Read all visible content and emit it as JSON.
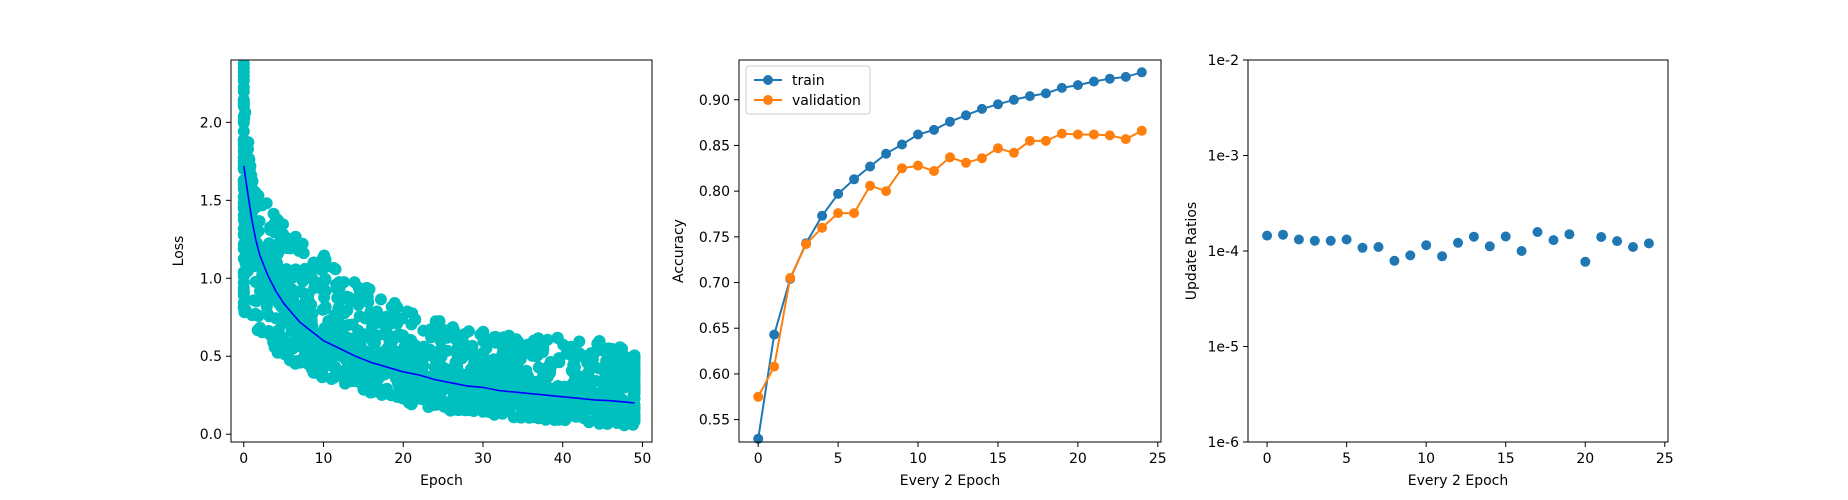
{
  "chart_data": [
    {
      "type": "scatter",
      "xlabel": "Epoch",
      "ylabel": "Loss",
      "xlim": [
        -1.6,
        51.2
      ],
      "ylim": [
        -0.05,
        2.4
      ],
      "xticks": [
        0,
        10,
        20,
        30,
        40,
        50
      ],
      "xtick_labels": [
        "0",
        "10",
        "20",
        "30",
        "40",
        "50"
      ],
      "yticks": [
        0.0,
        0.5,
        1.0,
        1.5,
        2.0
      ],
      "ytick_labels": [
        "0.0",
        "0.5",
        "1.0",
        "1.5",
        "2.0"
      ],
      "grid": false,
      "scatter_color": "#00bfbf",
      "line_color": "#0000ff",
      "scatter_envelope": {
        "x": [
          0,
          0.3,
          1,
          2,
          3,
          5,
          8,
          10,
          15,
          20,
          25,
          30,
          35,
          40,
          45,
          49
        ],
        "y_min": [
          0.8,
          0.65,
          0.65,
          0.62,
          0.55,
          0.5,
          0.4,
          0.35,
          0.28,
          0.2,
          0.15,
          0.12,
          0.1,
          0.08,
          0.06,
          0.05
        ],
        "y_max": [
          2.38,
          2.1,
          1.65,
          1.55,
          1.48,
          1.35,
          1.22,
          1.15,
          0.95,
          0.82,
          0.72,
          0.66,
          0.62,
          0.62,
          0.6,
          0.55
        ]
      },
      "line_x": [
        0,
        0.5,
        1,
        1.5,
        2,
        3,
        4,
        5,
        6,
        7,
        8,
        9,
        10,
        12,
        14,
        16,
        18,
        20,
        22,
        24,
        26,
        28,
        30,
        32,
        34,
        36,
        38,
        40,
        42,
        44,
        46,
        48,
        49
      ],
      "line_y": [
        1.72,
        1.55,
        1.38,
        1.25,
        1.15,
        1.02,
        0.92,
        0.84,
        0.78,
        0.72,
        0.68,
        0.64,
        0.6,
        0.55,
        0.5,
        0.46,
        0.43,
        0.4,
        0.38,
        0.35,
        0.33,
        0.31,
        0.3,
        0.28,
        0.27,
        0.26,
        0.25,
        0.24,
        0.23,
        0.22,
        0.215,
        0.205,
        0.2
      ]
    },
    {
      "type": "line",
      "xlabel": "Every 2 Epoch",
      "ylabel": "Accuracy",
      "xlim": [
        -1.2,
        25.2
      ],
      "ylim": [
        0.5255,
        0.9435
      ],
      "xticks": [
        0,
        5,
        10,
        15,
        20,
        25
      ],
      "xtick_labels": [
        "0",
        "5",
        "10",
        "15",
        "20",
        "25"
      ],
      "yticks": [
        0.55,
        0.6,
        0.65,
        0.7,
        0.75,
        0.8,
        0.85,
        0.9
      ],
      "ytick_labels": [
        "0.55",
        "0.60",
        "0.65",
        "0.70",
        "0.75",
        "0.80",
        "0.85",
        "0.90"
      ],
      "grid": false,
      "legend_placement": "upper-left",
      "x": [
        0,
        1,
        2,
        3,
        4,
        5,
        6,
        7,
        8,
        9,
        10,
        11,
        12,
        13,
        14,
        15,
        16,
        17,
        18,
        19,
        20,
        21,
        22,
        23,
        24
      ],
      "series": [
        {
          "name": "train",
          "color": "#1f77b4",
          "values": [
            0.529,
            0.643,
            0.704,
            0.743,
            0.773,
            0.797,
            0.813,
            0.827,
            0.841,
            0.851,
            0.862,
            0.867,
            0.876,
            0.883,
            0.89,
            0.895,
            0.9,
            0.904,
            0.907,
            0.913,
            0.916,
            0.92,
            0.923,
            0.925,
            0.93
          ]
        },
        {
          "name": "validation",
          "color": "#ff7f0e",
          "values": [
            0.575,
            0.608,
            0.705,
            0.742,
            0.76,
            0.776,
            0.776,
            0.806,
            0.8,
            0.825,
            0.828,
            0.822,
            0.837,
            0.831,
            0.836,
            0.847,
            0.842,
            0.855,
            0.855,
            0.863,
            0.862,
            0.862,
            0.861,
            0.857,
            0.866
          ]
        }
      ]
    },
    {
      "type": "scatter",
      "xlabel": "Every 2 Epoch",
      "ylabel": "Update Ratios",
      "yscale": "log",
      "xlim": [
        -1.2,
        25.2
      ],
      "ylim": [
        1e-06,
        0.01
      ],
      "xticks": [
        0,
        5,
        10,
        15,
        20,
        25
      ],
      "xtick_labels": [
        "0",
        "5",
        "10",
        "15",
        "20",
        "25"
      ],
      "yticks": [
        1e-06,
        1e-05,
        0.0001,
        0.001,
        0.01
      ],
      "ytick_labels": [
        "1e-6",
        "1e-5",
        "1e-4",
        "1e-3",
        "1e-2"
      ],
      "grid": false,
      "color": "#1f77b4",
      "x": [
        0,
        1,
        2,
        3,
        4,
        5,
        6,
        7,
        8,
        9,
        10,
        11,
        12,
        13,
        14,
        15,
        16,
        17,
        18,
        19,
        20,
        21,
        22,
        23,
        24
      ],
      "y": [
        0.000145,
        0.000148,
        0.000132,
        0.000128,
        0.000128,
        0.000132,
        0.000108,
        0.00011,
        7.9e-05,
        9e-05,
        0.000115,
        8.8e-05,
        0.000122,
        0.000141,
        0.000112,
        0.000142,
        0.0001,
        0.000158,
        0.00013,
        0.00015,
        7.7e-05,
        0.00014,
        0.000127,
        0.00011,
        0.00012
      ]
    }
  ]
}
